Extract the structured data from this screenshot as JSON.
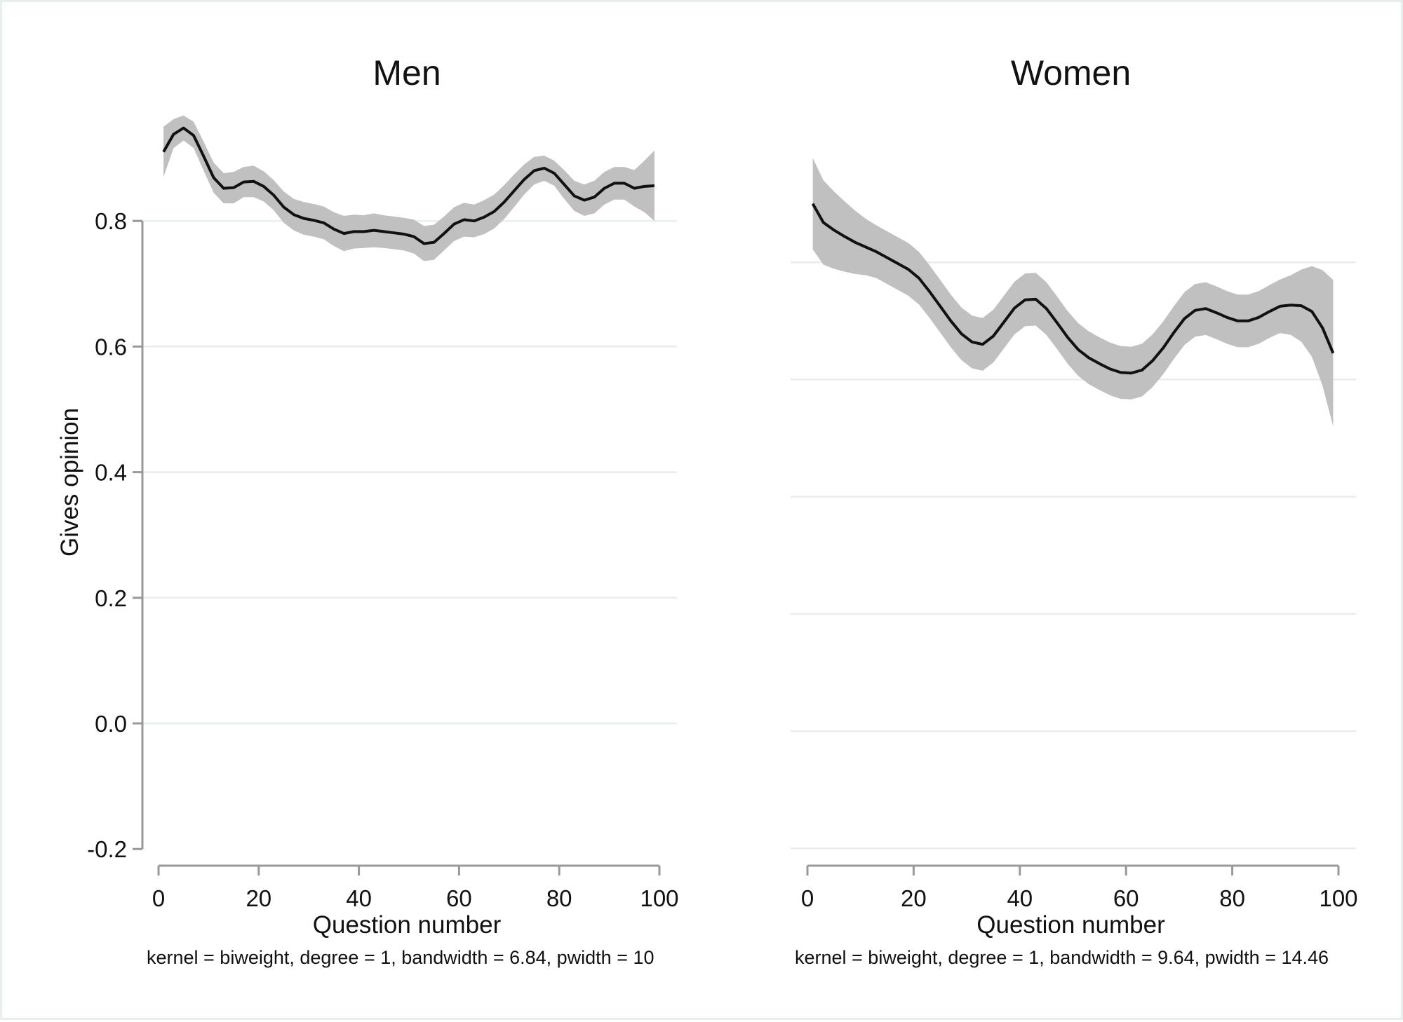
{
  "chart_data": [
    {
      "type": "line",
      "title": "Men",
      "xlabel": "Question number",
      "ylabel": "Gives opinion",
      "xlim": [
        0,
        100
      ],
      "ylim": [
        -0.2,
        1.0
      ],
      "xticks": [
        "0",
        "20",
        "40",
        "60",
        "80",
        "100"
      ],
      "yticks": [
        "-0.2",
        "0.0",
        "0.2",
        "0.4",
        "0.6",
        "0.8"
      ],
      "note": "kernel = biweight, degree = 1, bandwidth = 6.84, pwidth = 10",
      "grid": true,
      "series": [
        {
          "x": [
            1,
            3,
            5,
            7,
            9,
            11,
            13,
            15,
            17,
            19,
            21,
            23,
            25,
            27,
            29,
            31,
            33,
            35,
            37,
            39,
            41,
            43,
            45,
            47,
            49,
            51,
            53,
            55,
            57,
            59,
            61,
            63,
            65,
            67,
            69,
            71,
            73,
            75,
            77,
            79,
            81,
            83,
            85,
            87,
            89,
            91,
            93,
            95,
            97,
            99
          ],
          "y": [
            0.91,
            0.938,
            0.948,
            0.936,
            0.903,
            0.869,
            0.852,
            0.853,
            0.862,
            0.863,
            0.855,
            0.841,
            0.822,
            0.81,
            0.804,
            0.801,
            0.797,
            0.787,
            0.78,
            0.783,
            0.783,
            0.785,
            0.783,
            0.781,
            0.779,
            0.775,
            0.764,
            0.766,
            0.78,
            0.795,
            0.802,
            0.8,
            0.806,
            0.815,
            0.83,
            0.848,
            0.866,
            0.88,
            0.884,
            0.876,
            0.858,
            0.84,
            0.833,
            0.838,
            0.852,
            0.86,
            0.86,
            0.852,
            0.855,
            0.856
          ],
          "lower": [
            0.87,
            0.916,
            0.928,
            0.916,
            0.88,
            0.845,
            0.828,
            0.828,
            0.838,
            0.838,
            0.831,
            0.817,
            0.797,
            0.785,
            0.778,
            0.775,
            0.771,
            0.76,
            0.752,
            0.756,
            0.757,
            0.758,
            0.757,
            0.755,
            0.753,
            0.748,
            0.736,
            0.738,
            0.753,
            0.768,
            0.775,
            0.774,
            0.779,
            0.788,
            0.803,
            0.822,
            0.842,
            0.858,
            0.864,
            0.856,
            0.835,
            0.816,
            0.808,
            0.812,
            0.826,
            0.834,
            0.834,
            0.823,
            0.814,
            0.8
          ],
          "upper": [
            0.95,
            0.962,
            0.968,
            0.958,
            0.926,
            0.893,
            0.876,
            0.878,
            0.886,
            0.888,
            0.879,
            0.865,
            0.847,
            0.835,
            0.83,
            0.827,
            0.823,
            0.814,
            0.808,
            0.81,
            0.809,
            0.812,
            0.809,
            0.807,
            0.805,
            0.802,
            0.792,
            0.794,
            0.807,
            0.822,
            0.829,
            0.826,
            0.833,
            0.842,
            0.857,
            0.874,
            0.89,
            0.902,
            0.904,
            0.896,
            0.881,
            0.864,
            0.858,
            0.864,
            0.878,
            0.886,
            0.886,
            0.881,
            0.896,
            0.912
          ]
        }
      ]
    },
    {
      "type": "line",
      "title": "Women",
      "xlabel": "Question number",
      "xlim": [
        0,
        100
      ],
      "ylim": [
        -0.2,
        1.0
      ],
      "xticks": [
        "0",
        "20",
        "40",
        "60",
        "80",
        "100"
      ],
      "note": "kernel = biweight, degree = 1, bandwidth = 9.64, pwidth = 14.46",
      "grid": true,
      "series": [
        {
          "x": [
            1,
            3,
            5,
            7,
            9,
            11,
            13,
            15,
            17,
            19,
            21,
            23,
            25,
            27,
            29,
            31,
            33,
            35,
            37,
            39,
            41,
            43,
            45,
            47,
            49,
            51,
            53,
            55,
            57,
            59,
            61,
            63,
            65,
            67,
            69,
            71,
            73,
            75,
            77,
            79,
            81,
            83,
            85,
            87,
            89,
            91,
            93,
            95,
            97,
            99
          ],
          "y": [
            0.9,
            0.868,
            0.855,
            0.844,
            0.834,
            0.826,
            0.818,
            0.808,
            0.798,
            0.788,
            0.773,
            0.75,
            0.725,
            0.7,
            0.678,
            0.664,
            0.66,
            0.674,
            0.698,
            0.722,
            0.736,
            0.737,
            0.721,
            0.697,
            0.672,
            0.651,
            0.637,
            0.627,
            0.618,
            0.612,
            0.611,
            0.616,
            0.632,
            0.654,
            0.68,
            0.704,
            0.718,
            0.721,
            0.714,
            0.706,
            0.7,
            0.7,
            0.706,
            0.716,
            0.725,
            0.727,
            0.726,
            0.716,
            0.688,
            0.645
          ]
        }
      ]
    }
  ]
}
